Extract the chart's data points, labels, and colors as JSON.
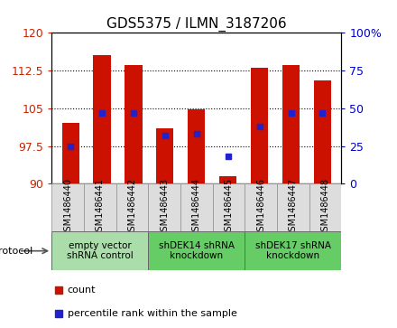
{
  "title": "GDS5375 / ILMN_3187206",
  "samples": [
    "GSM1486440",
    "GSM1486441",
    "GSM1486442",
    "GSM1486443",
    "GSM1486444",
    "GSM1486445",
    "GSM1486446",
    "GSM1486447",
    "GSM1486448"
  ],
  "counts": [
    102.0,
    115.5,
    113.5,
    101.0,
    104.8,
    91.5,
    113.0,
    113.5,
    110.5
  ],
  "percentiles": [
    25,
    47,
    47,
    32,
    33,
    18,
    38,
    47,
    47
  ],
  "ylim_left": [
    90,
    120
  ],
  "ylim_right": [
    0,
    100
  ],
  "yticks_left": [
    90,
    97.5,
    105,
    112.5,
    120
  ],
  "yticks_right": [
    0,
    25,
    50,
    75,
    100
  ],
  "bar_color": "#CC1100",
  "marker_color": "#2222CC",
  "bar_bottom": 90,
  "protocols": [
    {
      "label": "empty vector\nshRNA control",
      "start": 0,
      "end": 3,
      "color": "#aaddaa"
    },
    {
      "label": "shDEK14 shRNA\nknockdown",
      "start": 3,
      "end": 6,
      "color": "#66cc66"
    },
    {
      "label": "shDEK17 shRNA\nknockdown",
      "start": 6,
      "end": 9,
      "color": "#66cc66"
    }
  ],
  "protocol_label": "protocol",
  "legend_count_label": "count",
  "legend_percentile_label": "percentile rank within the sample",
  "bar_width": 0.55,
  "title_fontsize": 11,
  "tick_fontsize": 9,
  "sample_fontsize": 7,
  "xlim": [
    -0.6,
    8.6
  ]
}
